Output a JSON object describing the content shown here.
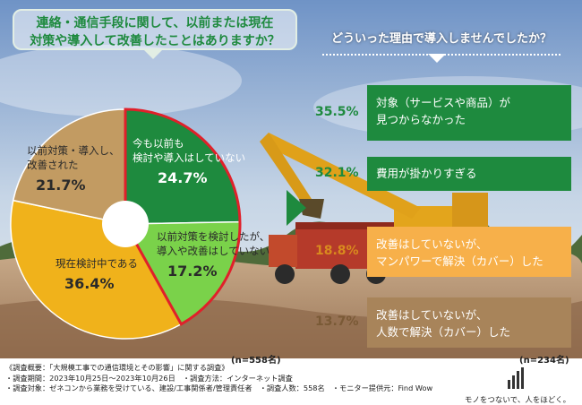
{
  "colors": {
    "dark_green": "#1e8a3e",
    "light_green": "#7ad24a",
    "yellow": "#f0b21b",
    "tan": "#c29b62",
    "orange": "#f7b04a",
    "brown": "#a8845a",
    "highlight": "#e0202a"
  },
  "left_question": {
    "line1": "連絡・通信手段に関して、以前または現在",
    "line2": "対策や導入して改善したことはありますか？"
  },
  "right_question": "どういった理由で導入しませんでしたか？",
  "chart_data": [
    {
      "type": "pie",
      "start_angle_deg": 0,
      "slices": [
        {
          "label_lines": [
            "今も以前も",
            "検討や導入はしていない"
          ],
          "value": 24.7,
          "pct_label": "24.7%",
          "color": "#1e8a3e",
          "highlight": true
        },
        {
          "label_lines": [
            "以前対策を検討したが、",
            "導入や改善はしていない"
          ],
          "value": 17.2,
          "pct_label": "17.2%",
          "color": "#7ad24a",
          "highlight": true
        },
        {
          "label_lines": [
            "現在検討中である"
          ],
          "value": 36.4,
          "pct_label": "36.4%",
          "color": "#f0b21b",
          "highlight": false
        },
        {
          "label_lines": [
            "以前対策・導入し、",
            "改善された"
          ],
          "value": 21.7,
          "pct_label": "21.7%",
          "color": "#c29b62",
          "highlight": false
        }
      ],
      "n_label": "(n=558名)"
    },
    {
      "type": "bar",
      "categories": [
        "対象（サービスや商品）が見つからなかった",
        "費用が掛かりすぎる",
        "改善はしていないが、マンパワーで解決（カバー）した",
        "改善はしていないが、人数で解決（カバー）した"
      ],
      "values": [
        35.5,
        32.1,
        18.8,
        13.7
      ],
      "n_label": "(n=234名)"
    }
  ],
  "reasons": [
    {
      "pct": "35.5%",
      "lines": [
        "対象（サービスや商品）が",
        "見つからなかった"
      ],
      "color": "#1e8a3e"
    },
    {
      "pct": "32.1%",
      "lines": [
        "費用が掛かりすぎる"
      ],
      "color": "#1e8a3e"
    },
    {
      "pct": "18.8%",
      "lines": [
        "改善はしていないが、",
        "マンパワーで解決（カバー）した"
      ],
      "color": "#f7b04a"
    },
    {
      "pct": "13.7%",
      "lines": [
        "改善はしていないが、",
        "人数で解決（カバー）した"
      ],
      "color": "#a8845a"
    }
  ],
  "footer": {
    "line1": "《調査概要：「大規模工事での通信環境とその影響」に関する調査》",
    "line2": "・調査期間：2023年10月25日～2023年10月26日　・調査方法：インターネット調査",
    "line3": "・調査対象：ゼネコンから業務を受けている、建設/工事関係者/管理責任者　・調査人数：558名　・モニター提供元：Find Wow"
  },
  "brand": {
    "tagline": "モノをつないで、人をほどく。"
  }
}
